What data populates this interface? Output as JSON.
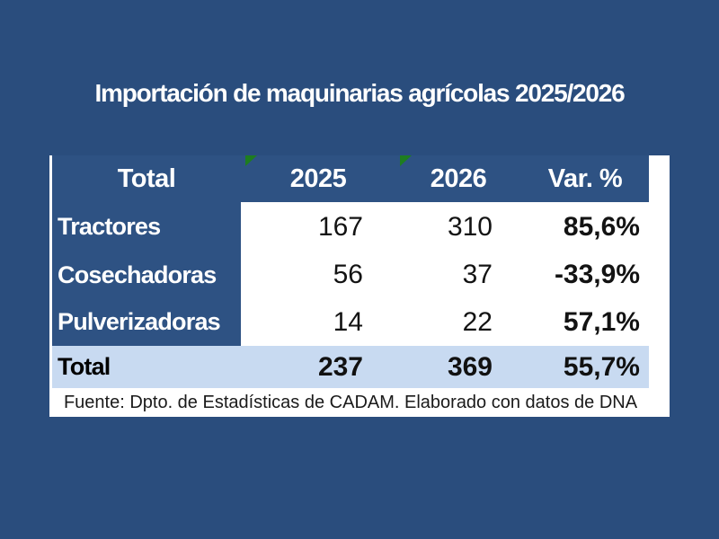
{
  "title": "Importación de maquinarias agrícolas 2025/2026",
  "colors": {
    "background": "#2A4D7D",
    "header_cell_blue": "#2E5283",
    "total_row_blue": "#C8DAF1",
    "panel_white": "#FFFFFF",
    "flag_green": "#1E7D20",
    "title_text": "#FFFFFF",
    "number_text": "#131313"
  },
  "table": {
    "headers": [
      "Total",
      "2025",
      "2026",
      "Var. %"
    ],
    "rows": [
      {
        "label": "Tractores",
        "y2025": "167",
        "y2026": "310",
        "var": "85,6%"
      },
      {
        "label": "Cosechadoras",
        "y2025": "56",
        "y2026": "37",
        "var": "-33,9%"
      },
      {
        "label": "Pulverizadoras",
        "y2025": "14",
        "y2026": "22",
        "var": "57,1%"
      }
    ],
    "total": {
      "label": "Total",
      "y2025": "237",
      "y2026": "369",
      "var": "55,7%"
    },
    "source": "Fuente: Dpto. de Estadísticas de CADAM. Elaborado con datos de DNA"
  },
  "chart_data": {
    "type": "table",
    "title": "Importación de maquinarias agrícolas 2025/2026",
    "columns": [
      "Total",
      "2025",
      "2026",
      "Var. %"
    ],
    "categories": [
      "Tractores",
      "Cosechadoras",
      "Pulverizadoras",
      "Total"
    ],
    "series": [
      {
        "name": "2025",
        "values": [
          167,
          56,
          14,
          237
        ]
      },
      {
        "name": "2026",
        "values": [
          310,
          37,
          22,
          369
        ]
      },
      {
        "name": "Var. %",
        "values": [
          "85,6%",
          "-33,9%",
          "57,1%",
          "55,7%"
        ]
      }
    ],
    "source": "Fuente: Dpto. de Estadísticas de CADAM. Elaborado con datos de DNA",
    "notes": "Green flag markers shown on 2025 and 2026 header cells; Var. % values use decimal comma; totals row highlighted light blue."
  }
}
